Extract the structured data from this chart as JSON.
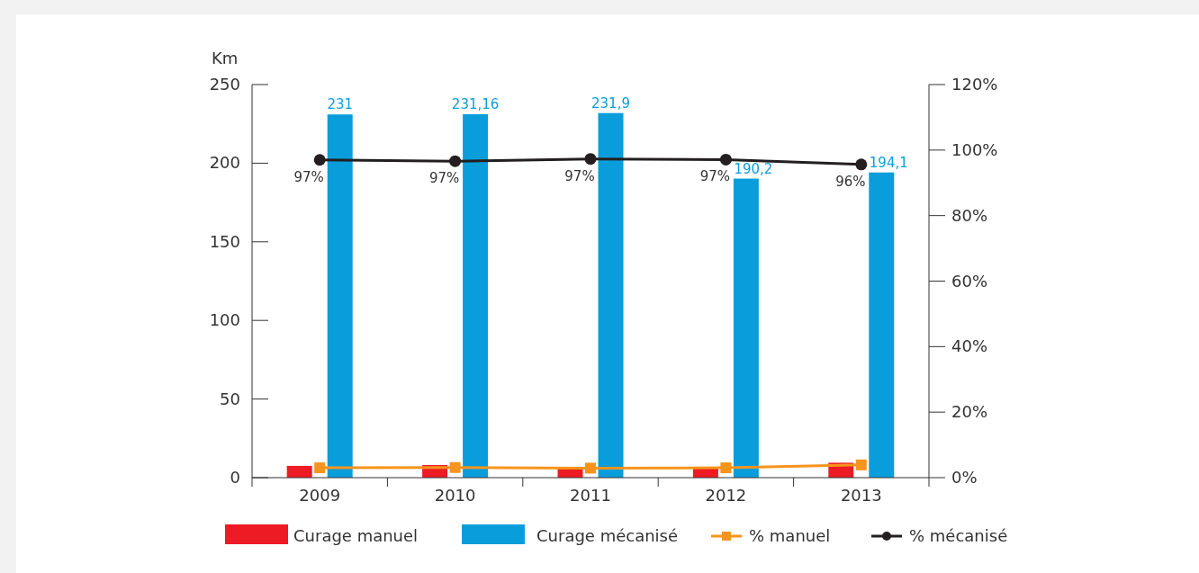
{
  "chart_data": {
    "type": "bar",
    "ylabel": "Km",
    "categories": [
      "2009",
      "2010",
      "2011",
      "2012",
      "2013"
    ],
    "series": [
      {
        "name": "Curage manuel",
        "color": "#ed1c24",
        "values": [
          7.5,
          8,
          6,
          6,
          9.5
        ]
      },
      {
        "name": "Curage mécanisé",
        "color": "#0a9ddb",
        "values": [
          231,
          231.16,
          231.9,
          190.2,
          194.1
        ],
        "value_labels": [
          "231",
          "231,16",
          "231,9",
          "190,2",
          "194,1"
        ]
      },
      {
        "name": "% manuel",
        "type": "line",
        "axis": "y2",
        "color": "#f7941d",
        "marker": "square",
        "values": [
          3,
          3.1,
          2.9,
          3,
          3.9
        ]
      },
      {
        "name": "% mécanisé",
        "type": "line",
        "axis": "y2",
        "color": "#231f20",
        "marker": "circle",
        "values": [
          97,
          96.6,
          97.3,
          97.1,
          95.6
        ],
        "value_labels": [
          "97%",
          "97%",
          "97%",
          "97%",
          "96%"
        ]
      }
    ],
    "ylim": [
      0,
      250
    ],
    "yticks": [
      0,
      50,
      100,
      150,
      200,
      250
    ],
    "y2lim": [
      0,
      120
    ],
    "y2ticks": [
      {
        "value": 0,
        "label": "0%"
      },
      {
        "value": 20,
        "label": "20%"
      },
      {
        "value": 40,
        "label": "40%"
      },
      {
        "value": 60,
        "label": "60%"
      },
      {
        "value": 80,
        "label": "80%"
      },
      {
        "value": 100,
        "label": "100%"
      },
      {
        "value": 120,
        "label": "120%"
      }
    ],
    "grid": false,
    "legend": "bottom"
  }
}
